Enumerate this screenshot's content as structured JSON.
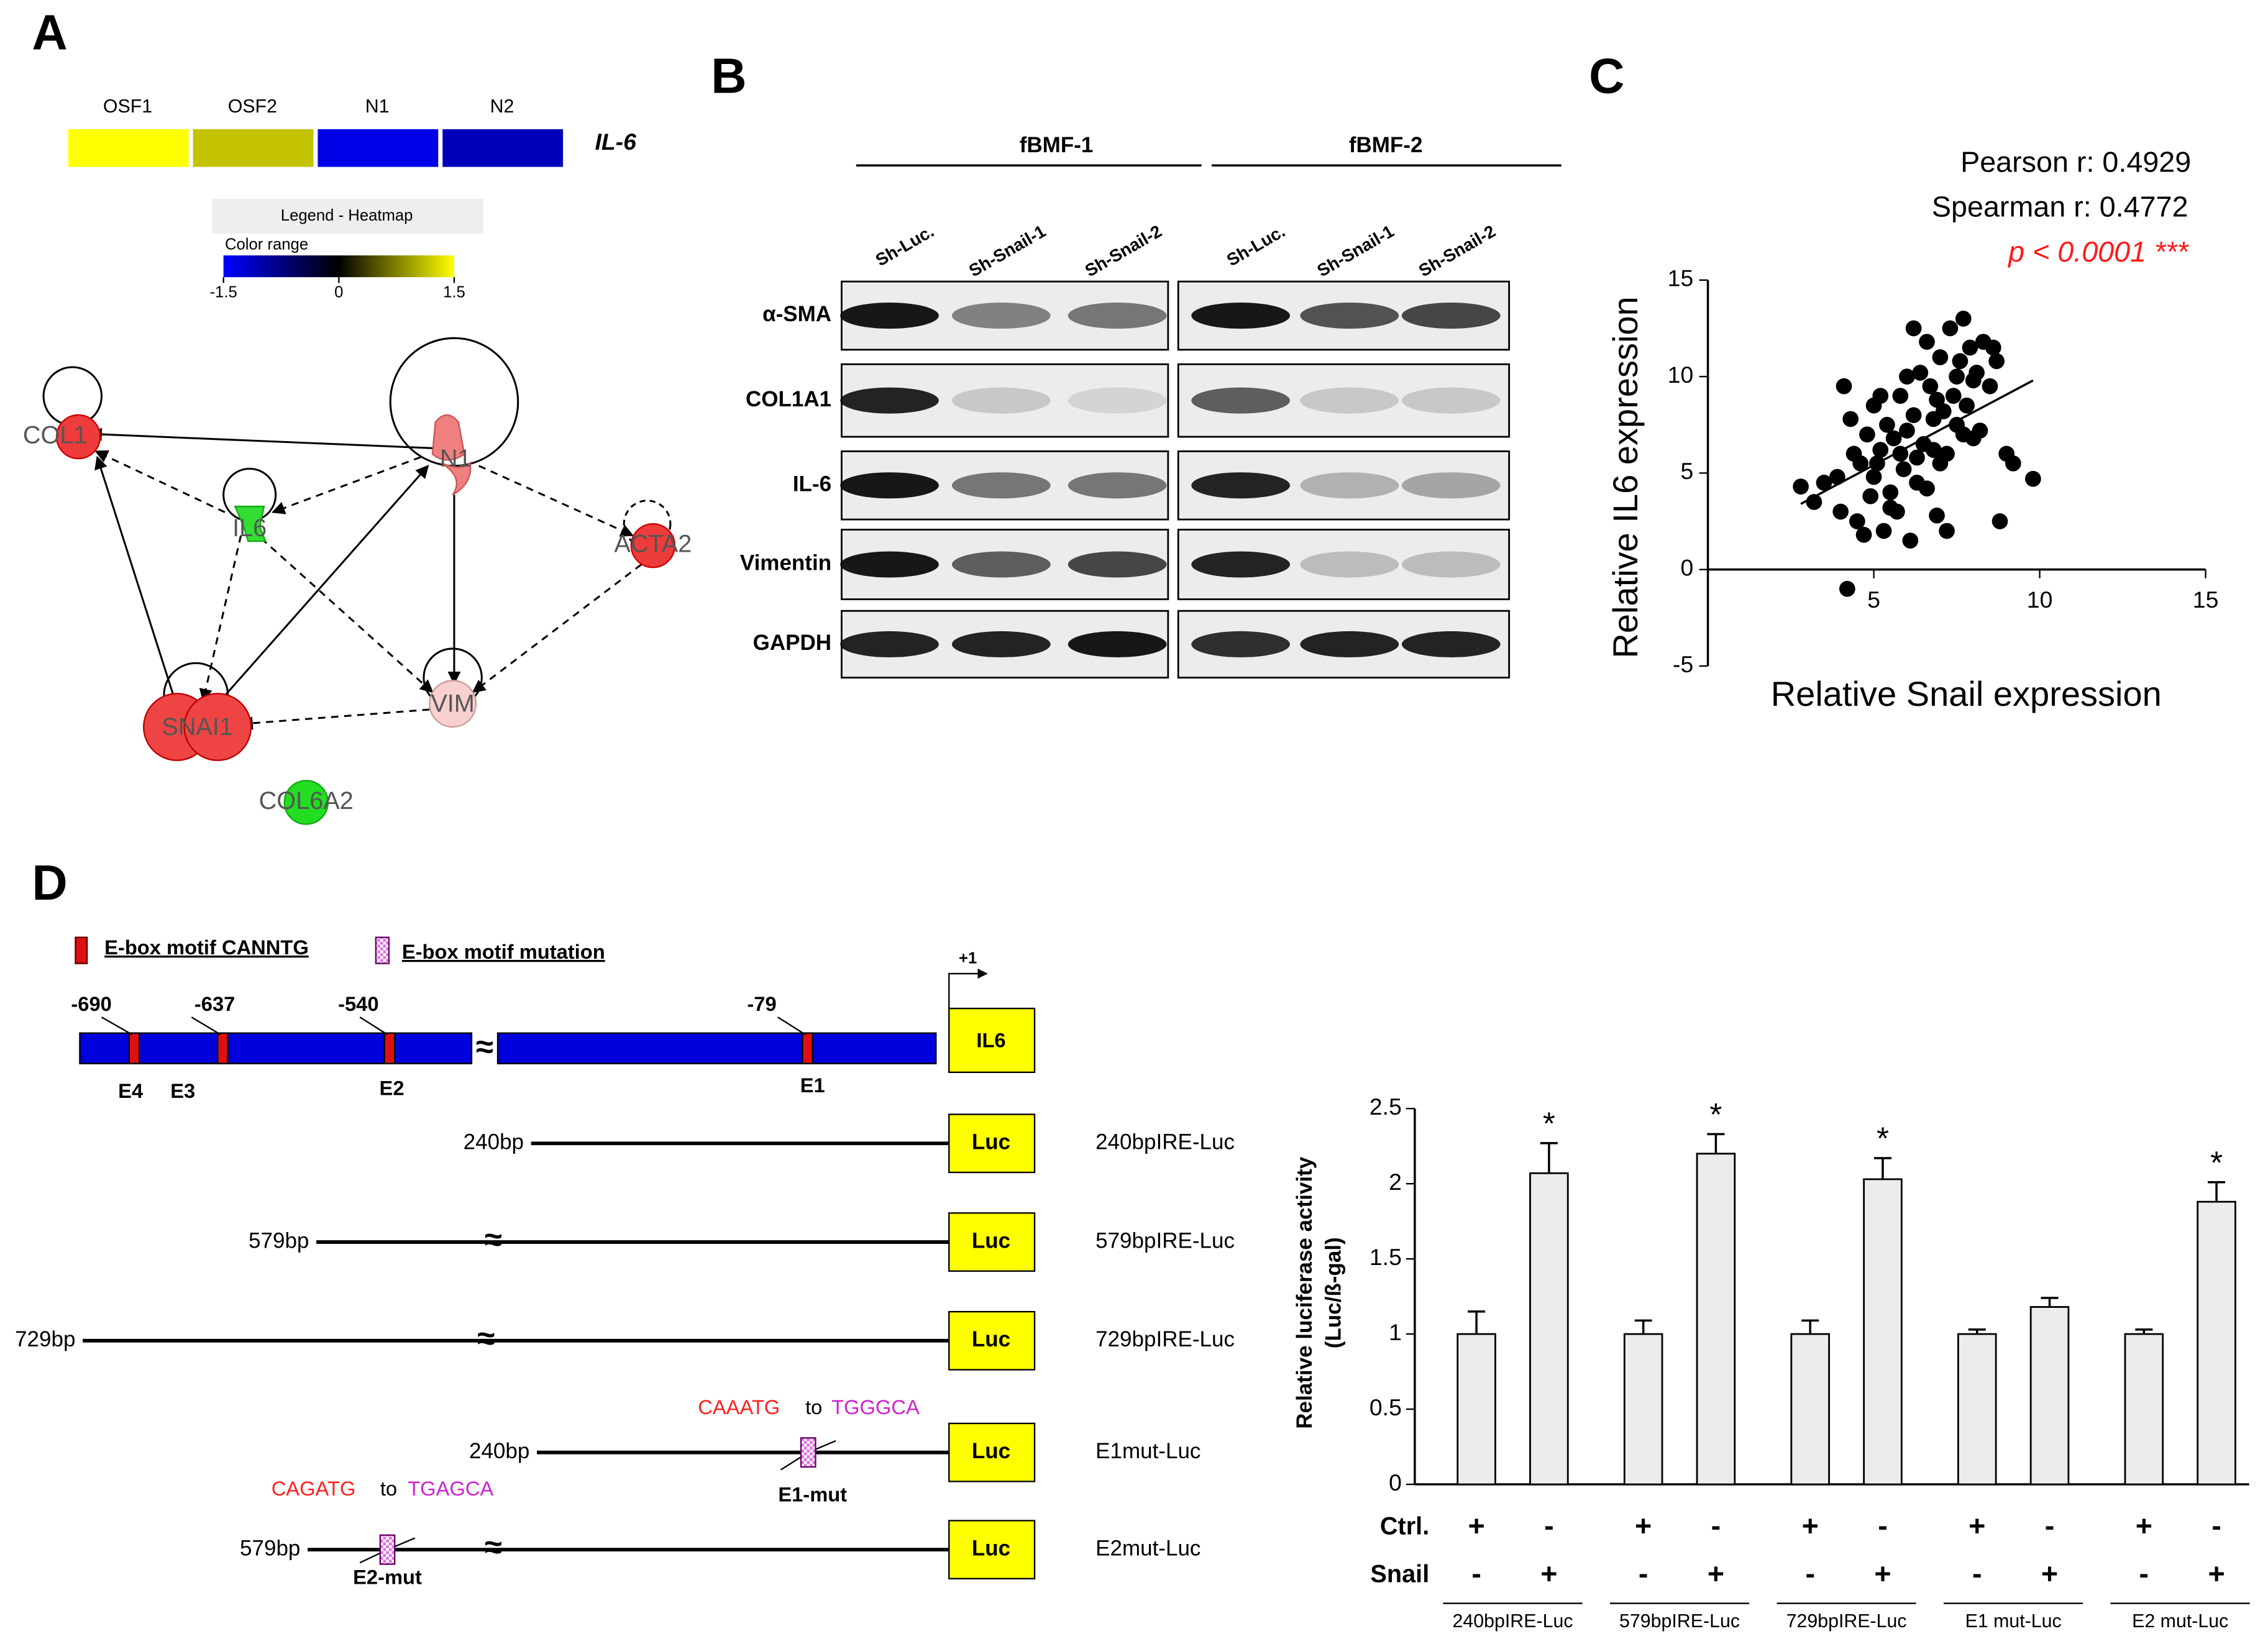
{
  "panels": {
    "a": "A",
    "b": "B",
    "c": "C",
    "d": "D"
  },
  "heatmap": {
    "samples": [
      "OSF1",
      "OSF2",
      "N1",
      "N2"
    ],
    "values": [
      1.5,
      1.15,
      -1.35,
      -1.1
    ],
    "gene": "IL-6",
    "legend_title": "Legend - Heatmap",
    "color_range": "Color range",
    "scale_ticks": [
      -1.5,
      0,
      1.5
    ]
  },
  "network": {
    "nodes": [
      "COL1",
      "IL6",
      "N1",
      "ACTA2",
      "SNAI1",
      "VIM",
      "COL6A2"
    ]
  },
  "blot": {
    "groups": [
      "fBMF-1",
      "fBMF-2"
    ],
    "lanes": [
      "Sh-Luc.",
      "Sh-Snail-1",
      "Sh-Snail-2"
    ],
    "proteins": [
      "α-SMA",
      "COL1A1",
      "IL-6",
      "Vimentin",
      "GAPDH"
    ]
  },
  "promoter": {
    "legend": [
      "E-box motif CANNTG",
      "E-box motif mutation"
    ],
    "tss": "+1",
    "gene": "IL6",
    "positions": [
      -690,
      -637,
      -540,
      -79
    ],
    "eboxes": [
      "E4",
      "E3",
      "E2",
      "E1"
    ],
    "reporter": "Luc",
    "constructs": [
      {
        "length": "240bp",
        "name": "240bpIRE-Luc"
      },
      {
        "length": "579bp",
        "name": "579bpIRE-Luc"
      },
      {
        "length": "729bp",
        "name": "729bpIRE-Luc"
      },
      {
        "length": "240bp",
        "name": "E1mut-Luc"
      },
      {
        "length": "579bp",
        "name": "E2mut-Luc"
      }
    ],
    "mutations": [
      {
        "from": "CAAATG",
        "word": "to",
        "to": "TGGGCA",
        "label": "E1-mut"
      },
      {
        "from": "CAGATG",
        "word": "to",
        "to": "TGAGCA",
        "label": "E2-mut"
      }
    ]
  },
  "chart_data": [
    {
      "type": "scatter",
      "stats": [
        "Pearson r: 0.4929",
        "Spearman r: 0.4772"
      ],
      "p_value": "p < 0.0001 ***",
      "xlabel": "Relative Snail expression",
      "ylabel": "Relative IL6 expression",
      "color": "#000000",
      "x": [
        2.8,
        3.2,
        3.5,
        3.9,
        4.1,
        4.2,
        4.4,
        4.5,
        4.6,
        4.8,
        4.9,
        5.0,
        5.1,
        5.2,
        5.3,
        5.4,
        5.5,
        5.6,
        5.7,
        5.8,
        5.9,
        6.0,
        6.1,
        6.2,
        6.3,
        6.4,
        6.5,
        6.6,
        6.7,
        6.8,
        6.9,
        7.0,
        7.1,
        7.2,
        7.3,
        7.4,
        7.5,
        7.6,
        7.7,
        7.8,
        7.9,
        8.0,
        8.1,
        8.2,
        8.3,
        8.5,
        8.6,
        8.8,
        9.0,
        9.2,
        9.8,
        4.3,
        5.5,
        6.0,
        6.6,
        7.0,
        5.2,
        6.3,
        7.2,
        8.0,
        4.7,
        5.8,
        6.9,
        7.5,
        6.2,
        5.0,
        4.0,
        8.7,
        6.8,
        7.7
      ],
      "values": [
        4.3,
        3.5,
        4.5,
        4.8,
        9.5,
        -1.0,
        6.0,
        2.5,
        5.5,
        7.0,
        3.8,
        8.5,
        5.5,
        6.2,
        2.0,
        7.5,
        4.0,
        6.8,
        3.0,
        9.0,
        5.2,
        7.2,
        1.5,
        8.0,
        5.8,
        10.2,
        6.5,
        4.2,
        9.5,
        7.8,
        2.8,
        11.0,
        8.2,
        6.0,
        12.5,
        9.0,
        7.5,
        10.8,
        13.0,
        8.5,
        11.5,
        9.8,
        10.2,
        7.2,
        11.8,
        9.5,
        11.5,
        2.5,
        6.0,
        5.5,
        4.7,
        7.8,
        3.2,
        10.0,
        11.8,
        5.5,
        9.0,
        4.5,
        2.0,
        6.8,
        1.8,
        6.0,
        8.8,
        10.0,
        12.5,
        4.8,
        3.0,
        10.8,
        6.2,
        7.0
      ],
      "fit": {
        "x": [
          2.8,
          9.8
        ],
        "values": [
          3.4,
          9.8
        ]
      },
      "xlim": [
        0,
        15
      ],
      "xticks": [
        5,
        10,
        15
      ],
      "ylim": [
        -5,
        15
      ],
      "yticks": [
        -5,
        0,
        5,
        10,
        15
      ]
    },
    {
      "type": "bar",
      "ylabel": "Relative luciferase activity",
      "ylabel_unit": "(Luc/ß-gal)",
      "categories": [
        "240bpIRE-Luc",
        "579bpIRE-Luc",
        "729bpIRE-Luc",
        "E1 mut-Luc",
        "E2 mut-Luc"
      ],
      "series": [
        {
          "name": "Ctrl.",
          "color": "#ececec",
          "signs": [
            "+",
            "-"
          ],
          "values": [
            1,
            1,
            1,
            1,
            1
          ],
          "errors": [
            0.15,
            0.09,
            0.09,
            0.03,
            0.03
          ]
        },
        {
          "name": "Snail",
          "color": "#ececec",
          "signs": [
            "-",
            "+"
          ],
          "values": [
            2.07,
            2.2,
            2.03,
            1.18,
            1.88
          ],
          "errors": [
            0.2,
            0.13,
            0.14,
            0.06,
            0.13
          ],
          "markers": [
            "*",
            "*",
            "*",
            null,
            "*"
          ]
        }
      ],
      "ylim": [
        0,
        2.5
      ],
      "yticks": [
        0,
        0.5,
        1,
        1.5,
        2,
        2.5
      ]
    }
  ]
}
